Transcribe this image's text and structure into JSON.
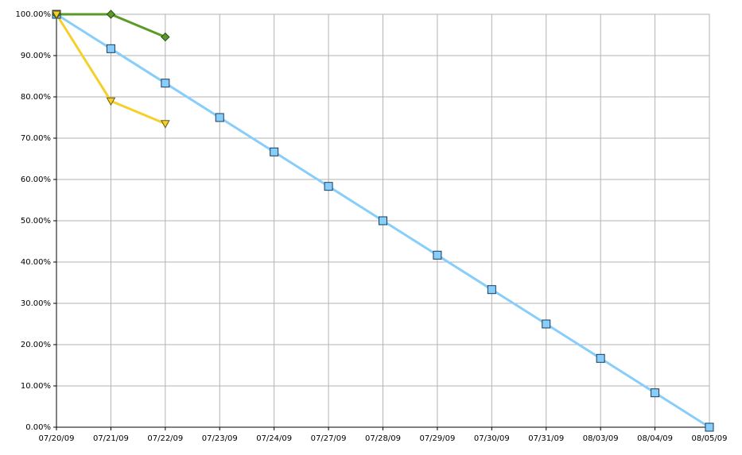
{
  "chart_data": {
    "type": "line",
    "categories": [
      "07/20/09",
      "07/21/09",
      "07/22/09",
      "07/23/09",
      "07/24/09",
      "07/27/09",
      "07/28/09",
      "07/29/09",
      "07/30/09",
      "07/31/09",
      "08/03/09",
      "08/04/09",
      "08/05/09"
    ],
    "series": [
      {
        "color": "#87cefa",
        "marker": "square",
        "values": [
          100,
          91.67,
          83.33,
          75,
          66.67,
          58.33,
          50,
          41.67,
          33.33,
          25,
          16.67,
          8.33,
          0
        ]
      },
      {
        "color": "#5a9a28",
        "marker": "diamond",
        "values": [
          100,
          100,
          94.5,
          null,
          null,
          null,
          null,
          null,
          null,
          null,
          null,
          null,
          null
        ]
      },
      {
        "color": "#f5cf2a",
        "marker": "triangle-down",
        "values": [
          100,
          79,
          73.5,
          null,
          null,
          null,
          null,
          null,
          null,
          null,
          null,
          null,
          null
        ]
      }
    ],
    "ylim": [
      0,
      100
    ],
    "yticks": [
      {
        "value": 0,
        "label": "0.00%"
      },
      {
        "value": 10,
        "label": "10.00%"
      },
      {
        "value": 20,
        "label": "20.00%"
      },
      {
        "value": 30,
        "label": "30.00%"
      },
      {
        "value": 40,
        "label": "40.00%"
      },
      {
        "value": 50,
        "label": "50.00%"
      },
      {
        "value": 60,
        "label": "60.00%"
      },
      {
        "value": 70,
        "label": "70.00%"
      },
      {
        "value": 80,
        "label": "80.00%"
      },
      {
        "value": 90,
        "label": "90.00%"
      },
      {
        "value": 100,
        "label": "100.00%"
      }
    ],
    "grid": true
  }
}
